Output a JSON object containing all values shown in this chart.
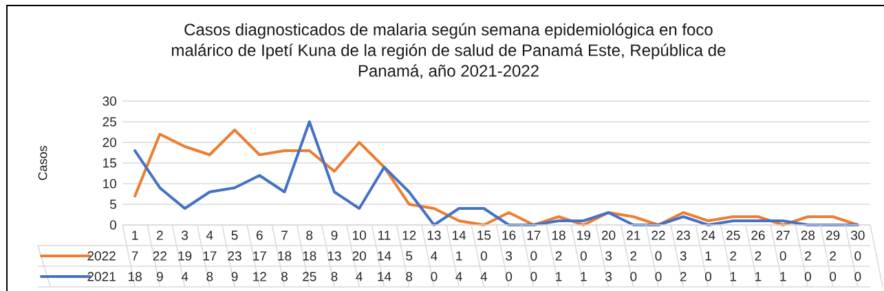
{
  "chart_data": {
    "type": "line",
    "title": "Casos diagnosticados de malaria según semana epidemiológica en foco malárico de Ipetí Kuna de la región de salud de Panamá Este, República de Panamá, año 2021-2022",
    "ylabel": "Casos",
    "categories": [
      "1",
      "2",
      "3",
      "4",
      "5",
      "6",
      "7",
      "8",
      "9",
      "10",
      "11",
      "12",
      "13",
      "14",
      "15",
      "16",
      "17",
      "18",
      "19",
      "20",
      "21",
      "22",
      "23",
      "24",
      "25",
      "26",
      "27",
      "28",
      "29",
      "30"
    ],
    "series": [
      {
        "name": "2022",
        "color": "#ed7d31",
        "values": [
          7,
          22,
          19,
          17,
          23,
          17,
          18,
          18,
          13,
          20,
          14,
          5,
          4,
          1,
          0,
          3,
          0,
          2,
          0,
          3,
          2,
          0,
          3,
          1,
          2,
          2,
          0,
          2,
          2,
          0
        ]
      },
      {
        "name": "2021",
        "color": "#4472c4",
        "values": [
          18,
          9,
          4,
          8,
          9,
          12,
          8,
          25,
          8,
          4,
          14,
          8,
          0,
          4,
          4,
          0,
          0,
          1,
          1,
          3,
          0,
          0,
          2,
          0,
          1,
          1,
          1,
          0,
          0,
          0
        ]
      }
    ],
    "ylim": [
      0,
      30
    ],
    "yticks": [
      0,
      5,
      10,
      15,
      20,
      25,
      30
    ],
    "grid": "y",
    "legend": "bottom",
    "data_labels": true
  }
}
